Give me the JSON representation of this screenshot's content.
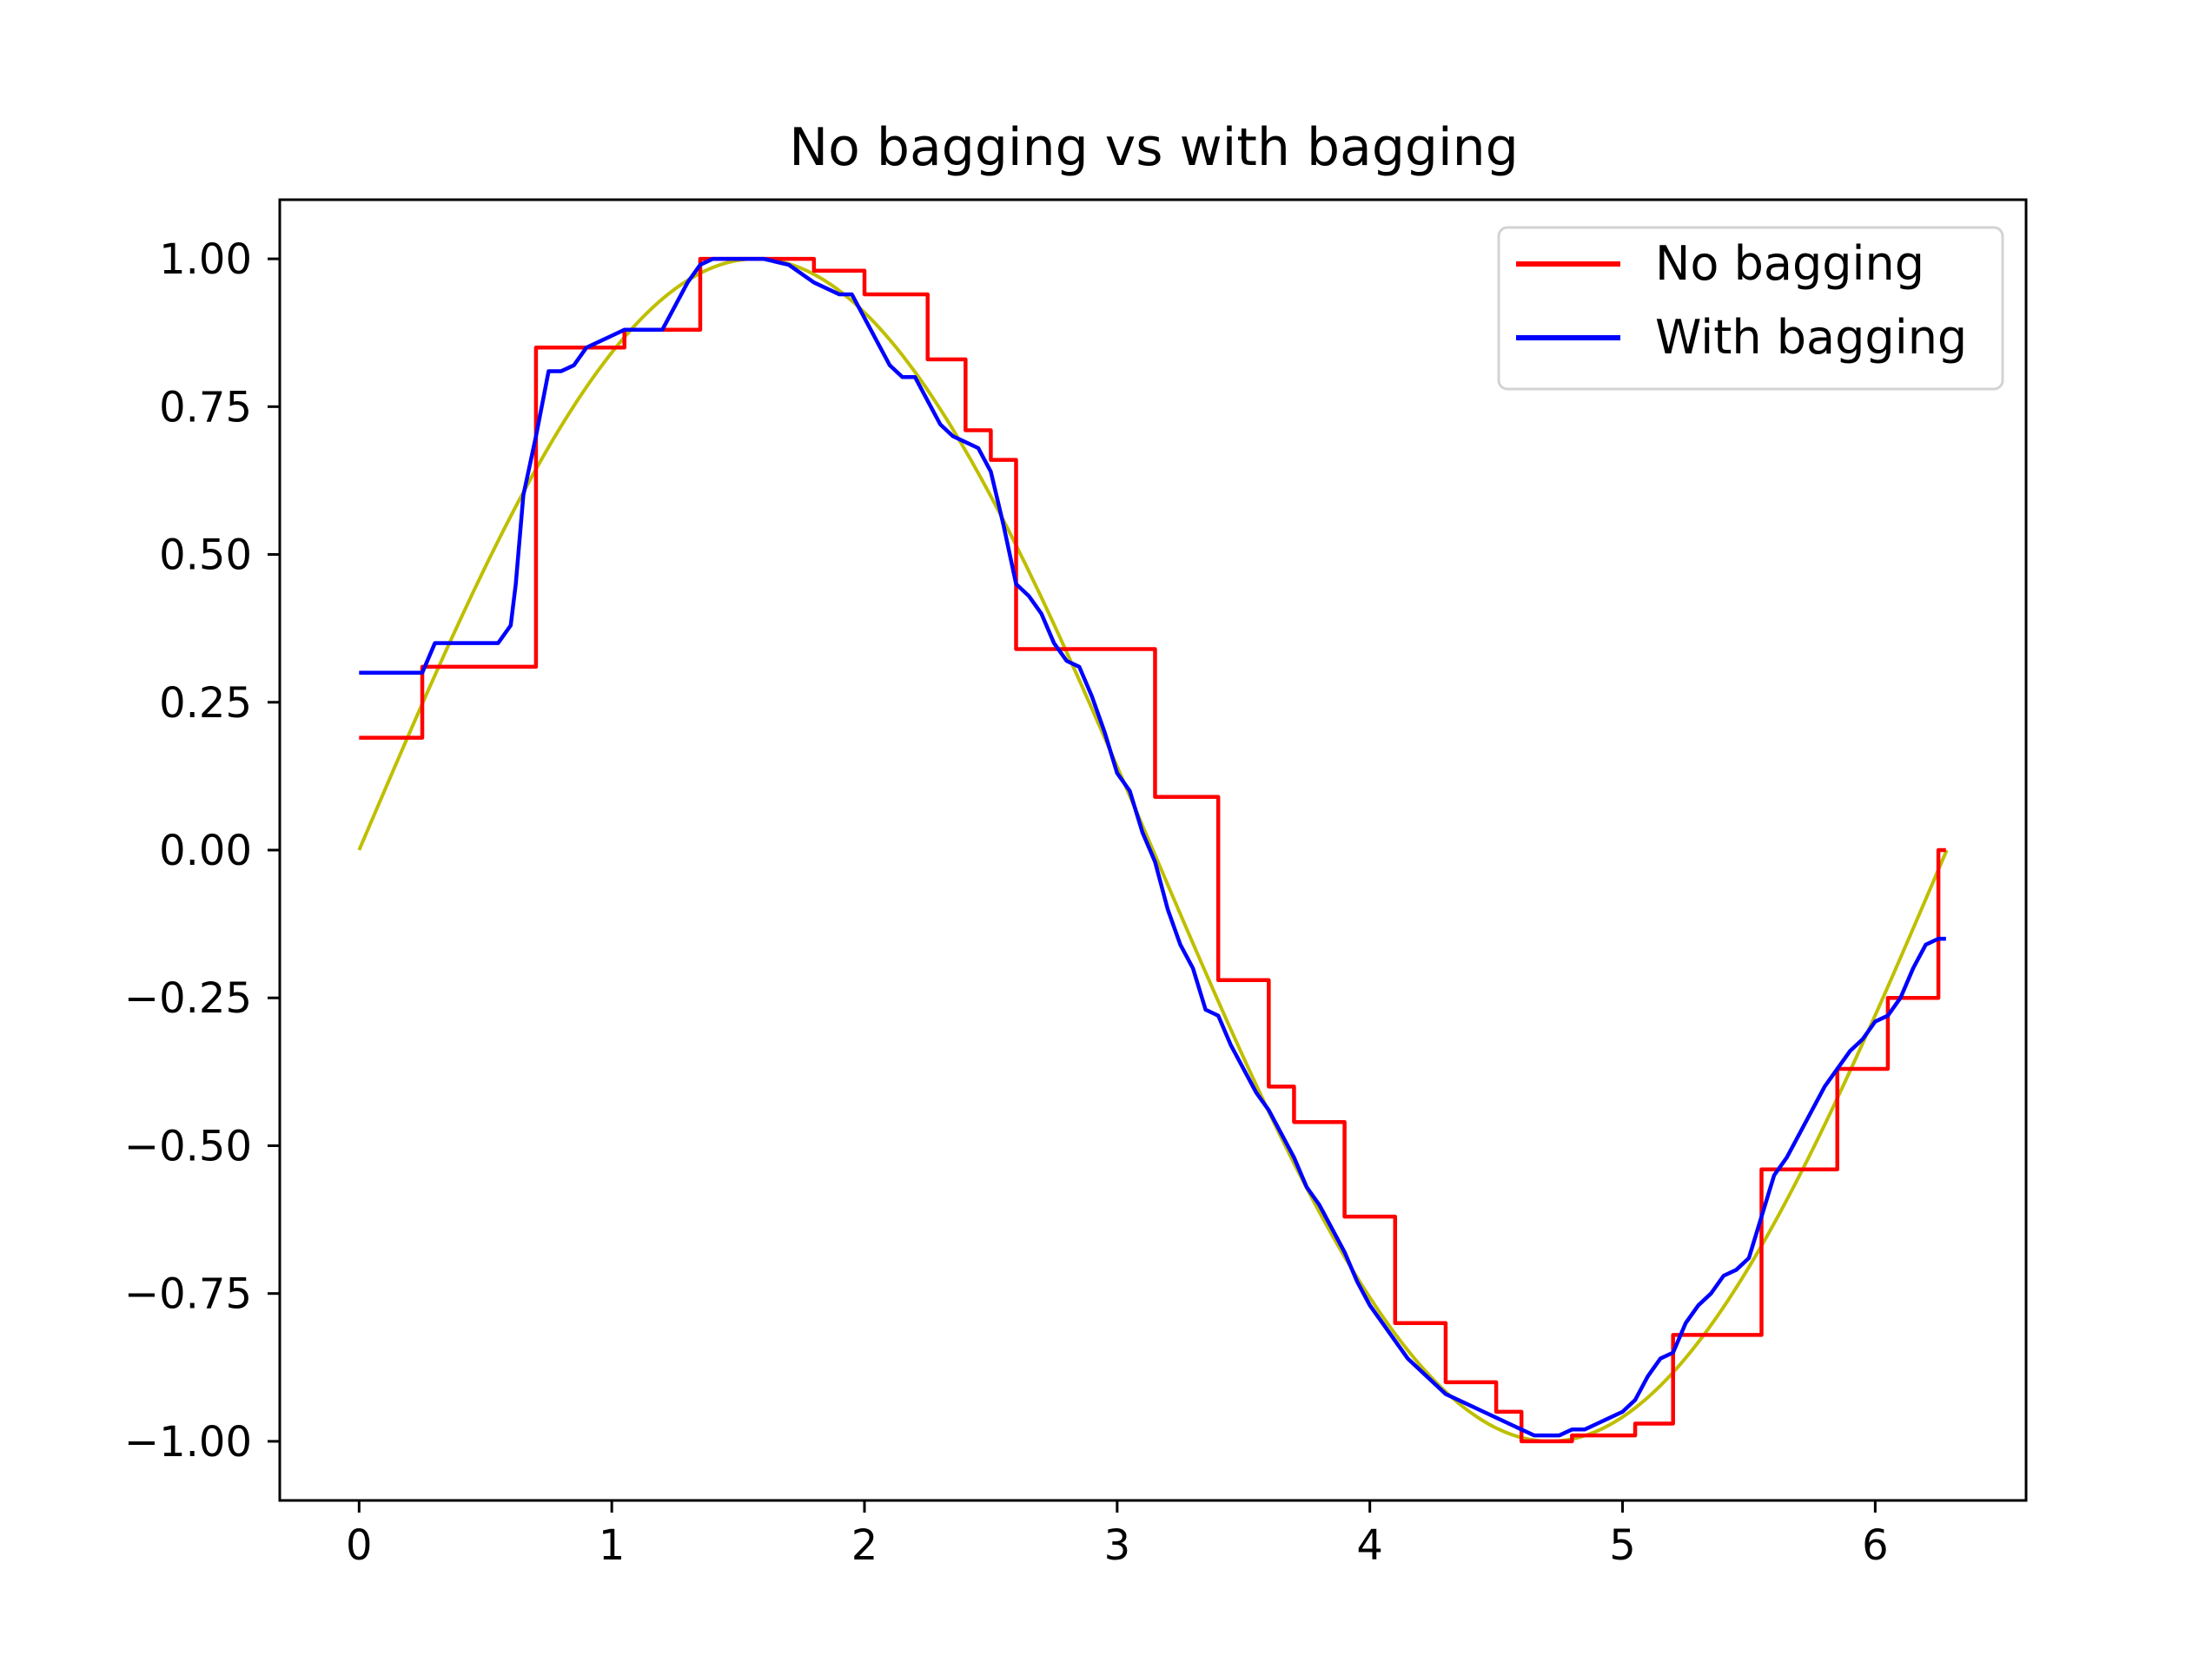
{
  "chart_data": {
    "type": "line",
    "title": "No bagging vs with bagging",
    "xlabel": "",
    "ylabel": "",
    "xlim": [
      -0.314,
      6.597
    ],
    "ylim": [
      -1.1,
      1.1
    ],
    "xticks": [
      0,
      1,
      2,
      3,
      4,
      5,
      6
    ],
    "xtick_labels": [
      "0",
      "1",
      "2",
      "3",
      "4",
      "5",
      "6"
    ],
    "yticks": [
      1.0,
      0.75,
      0.5,
      0.25,
      0.0,
      -0.25,
      -0.5,
      -0.75,
      -1.0
    ],
    "ytick_labels": [
      "1.00",
      "0.75",
      "0.50",
      "0.25",
      "0.00",
      "−0.25",
      "−0.50",
      "−0.75",
      "−1.00"
    ],
    "grid": false,
    "legend_position": "top-right",
    "true_function": {
      "expression": "sin(x)",
      "x_range": [
        0,
        6.283
      ],
      "color": "#bfbf00"
    },
    "series": [
      {
        "name": "No bagging",
        "color": "#ff0000",
        "step": true,
        "x": [
          0,
          0.25,
          0.3,
          0.6,
          0.7,
          0.95,
          1.05,
          1.3,
          1.35,
          1.65,
          1.8,
          2.0,
          2.2,
          2.25,
          2.4,
          2.5,
          2.6,
          2.85,
          2.95,
          3.15,
          3.2,
          3.4,
          3.5,
          3.6,
          3.7,
          3.9,
          4.0,
          4.1,
          4.2,
          4.3,
          4.35,
          4.5,
          4.6,
          4.8,
          5.05,
          5.2,
          5.5,
          5.55,
          5.75,
          5.85,
          5.95,
          6.05,
          6.15,
          6.25,
          6.28
        ],
        "values": [
          0.19,
          0.31,
          0.31,
          0.31,
          0.85,
          0.85,
          0.88,
          0.88,
          1.0,
          1.0,
          0.98,
          0.94,
          0.94,
          0.83,
          0.71,
          0.66,
          0.34,
          0.34,
          0.34,
          0.09,
          0.09,
          -0.22,
          -0.22,
          -0.4,
          -0.46,
          -0.62,
          -0.62,
          -0.8,
          -0.8,
          -0.9,
          -0.9,
          -0.95,
          -1.0,
          -0.99,
          -0.97,
          -0.82,
          -0.82,
          -0.54,
          -0.54,
          -0.37,
          -0.37,
          -0.25,
          -0.25,
          0.0,
          0.0
        ]
      },
      {
        "name": "With bagging",
        "color": "#0000ff",
        "step": false,
        "x": [
          0,
          0.1,
          0.25,
          0.3,
          0.4,
          0.55,
          0.6,
          0.62,
          0.65,
          0.7,
          0.75,
          0.8,
          0.85,
          0.9,
          0.95,
          1.0,
          1.05,
          1.1,
          1.2,
          1.3,
          1.35,
          1.4,
          1.45,
          1.5,
          1.55,
          1.6,
          1.7,
          1.8,
          1.9,
          1.95,
          2.0,
          2.05,
          2.1,
          2.15,
          2.2,
          2.25,
          2.3,
          2.35,
          2.4,
          2.45,
          2.5,
          2.55,
          2.6,
          2.65,
          2.7,
          2.75,
          2.8,
          2.85,
          2.9,
          2.95,
          3.0,
          3.05,
          3.1,
          3.15,
          3.2,
          3.25,
          3.3,
          3.35,
          3.4,
          3.45,
          3.5,
          3.55,
          3.6,
          3.65,
          3.7,
          3.75,
          3.8,
          3.85,
          3.9,
          3.95,
          4.0,
          4.05,
          4.1,
          4.15,
          4.2,
          4.25,
          4.3,
          4.35,
          4.4,
          4.45,
          4.5,
          4.55,
          4.6,
          4.65,
          4.7,
          4.75,
          4.8,
          4.85,
          4.9,
          4.95,
          5.0,
          5.05,
          5.1,
          5.15,
          5.2,
          5.25,
          5.3,
          5.35,
          5.4,
          5.45,
          5.5,
          5.55,
          5.6,
          5.65,
          5.7,
          5.75,
          5.8,
          5.85,
          5.9,
          5.95,
          6.0,
          6.05,
          6.1,
          6.15,
          6.2,
          6.25,
          6.28
        ],
        "values": [
          0.3,
          0.3,
          0.3,
          0.35,
          0.35,
          0.35,
          0.38,
          0.45,
          0.6,
          0.7,
          0.81,
          0.81,
          0.82,
          0.85,
          0.86,
          0.87,
          0.88,
          0.88,
          0.88,
          0.96,
          0.99,
          1.0,
          1.0,
          1.0,
          1.0,
          1.0,
          0.99,
          0.96,
          0.94,
          0.94,
          0.9,
          0.86,
          0.82,
          0.8,
          0.8,
          0.76,
          0.72,
          0.7,
          0.69,
          0.68,
          0.64,
          0.55,
          0.45,
          0.43,
          0.4,
          0.35,
          0.32,
          0.31,
          0.26,
          0.2,
          0.13,
          0.1,
          0.03,
          -0.02,
          -0.1,
          -0.16,
          -0.2,
          -0.27,
          -0.28,
          -0.33,
          -0.37,
          -0.41,
          -0.44,
          -0.48,
          -0.52,
          -0.57,
          -0.6,
          -0.64,
          -0.68,
          -0.73,
          -0.77,
          -0.8,
          -0.83,
          -0.86,
          -0.88,
          -0.9,
          -0.92,
          -0.93,
          -0.94,
          -0.95,
          -0.96,
          -0.97,
          -0.98,
          -0.99,
          -0.99,
          -0.99,
          -0.98,
          -0.98,
          -0.97,
          -0.96,
          -0.95,
          -0.93,
          -0.89,
          -0.86,
          -0.85,
          -0.8,
          -0.77,
          -0.75,
          -0.72,
          -0.71,
          -0.69,
          -0.62,
          -0.55,
          -0.52,
          -0.48,
          -0.44,
          -0.4,
          -0.37,
          -0.34,
          -0.32,
          -0.29,
          -0.28,
          -0.25,
          -0.2,
          -0.16,
          -0.15,
          -0.15
        ]
      }
    ]
  }
}
